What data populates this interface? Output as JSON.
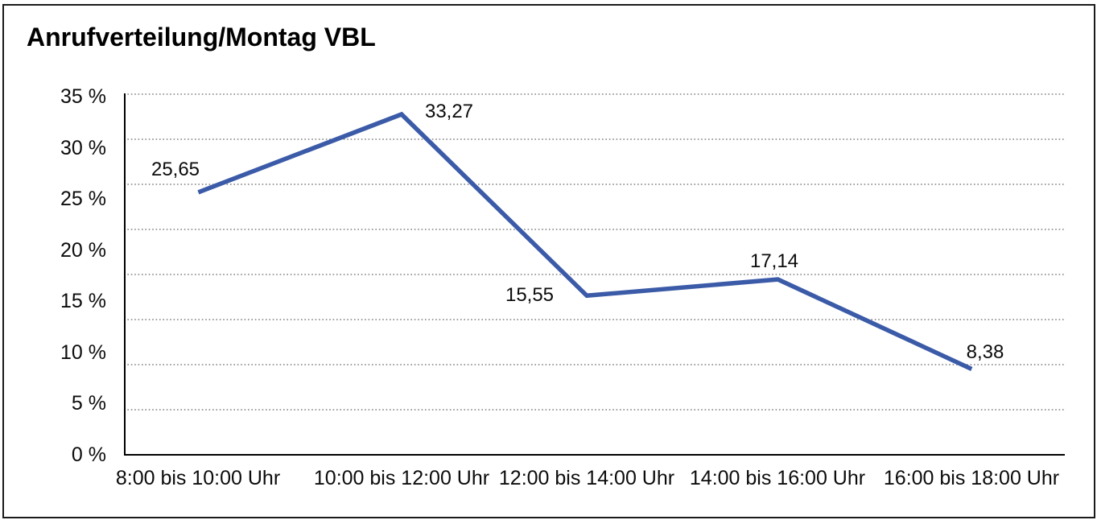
{
  "title": "Anrufverteilung/Montag VBL",
  "chart_data": {
    "type": "line",
    "title": "Anrufverteilung/Montag VBL",
    "categories": [
      "8:00 bis 10:00 Uhr",
      "10:00 bis 12:00 Uhr",
      "12:00 bis 14:00 Uhr",
      "14:00 bis 16:00 Uhr",
      "16:00 bis 18:00 Uhr"
    ],
    "values": [
      25.65,
      33.27,
      15.55,
      17.14,
      8.38
    ],
    "point_labels": [
      "25,65",
      "33,27",
      "15,55",
      "17,14",
      "8,38"
    ],
    "y_tick_labels": [
      "0 %",
      "5 %",
      "10 %",
      "15 %",
      "20 %",
      "25 %",
      "30 %",
      "35 %"
    ],
    "ylim": [
      0,
      35
    ],
    "xlabel": "",
    "ylabel": "",
    "legend": "none",
    "grid": "horizontal-dotted",
    "line_color": "#3B5BA8",
    "axis_color": "#000000",
    "gridline_color": "#3f3f3f"
  }
}
